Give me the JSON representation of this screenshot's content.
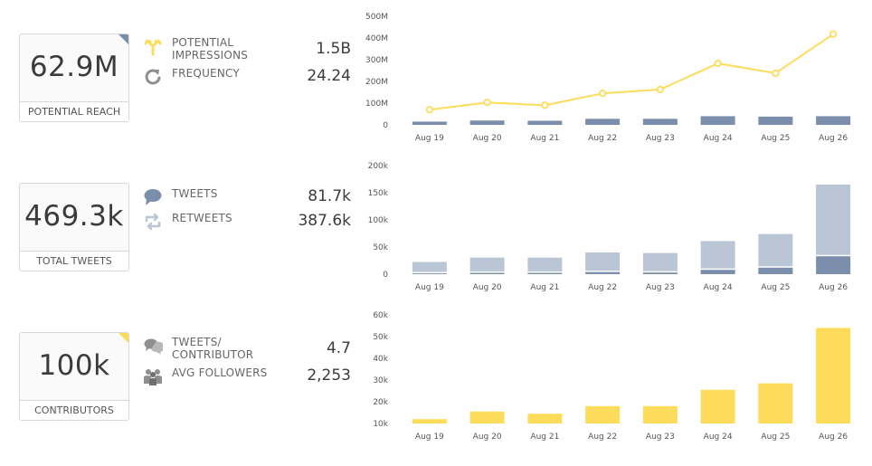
{
  "sections": [
    {
      "kpi": {
        "value": "62.9M",
        "label": "POTENTIAL REACH"
      },
      "metrics": [
        {
          "label": "POTENTIAL\nIMPRESSIONS",
          "value": "1.5B",
          "icon": "split-arrows-icon"
        },
        {
          "label": "FREQUENCY",
          "value": "24.24",
          "icon": "refresh-icon"
        }
      ]
    },
    {
      "kpi": {
        "value": "469.3k",
        "label": "TOTAL TWEETS"
      },
      "metrics": [
        {
          "label": "TWEETS",
          "value": "81.7k",
          "icon": "speech-bubble-icon"
        },
        {
          "label": "RETWEETS",
          "value": "387.6k",
          "icon": "retweet-icon"
        }
      ]
    },
    {
      "kpi": {
        "value": "100k",
        "label": "CONTRIBUTORS"
      },
      "metrics": [
        {
          "label": "TWEETS/\nCONTRIBUTOR",
          "value": "4.7",
          "icon": "speech-bubbles-icon"
        },
        {
          "label": "AVG FOLLOWERS",
          "value": "2,253",
          "icon": "people-icon"
        }
      ]
    }
  ],
  "colors": {
    "yellow": "#fddc5c",
    "dark_blue": "#7b8fad",
    "light_blue": "#bac6d6",
    "icon_gray": "#8f8f8f",
    "corner_blue": "#7b8fad",
    "corner_yellow": "#fddc5c"
  },
  "chart_data": [
    {
      "type": "bar+line",
      "categories": [
        "Aug 19",
        "Aug 20",
        "Aug 21",
        "Aug 22",
        "Aug 23",
        "Aug 24",
        "Aug 25",
        "Aug 26"
      ],
      "bar_values": [
        15,
        20,
        19,
        28,
        28,
        40,
        38,
        40
      ],
      "line_values": [
        70,
        103,
        90,
        145,
        163,
        283,
        238,
        418
      ],
      "ylim": [
        0,
        500
      ],
      "yticks": [
        "0",
        "100M",
        "200M",
        "300M",
        "400M",
        "500M"
      ]
    },
    {
      "type": "stacked-bar",
      "categories": [
        "Aug 19",
        "Aug 20",
        "Aug 21",
        "Aug 22",
        "Aug 23",
        "Aug 24",
        "Aug 25",
        "Aug 26"
      ],
      "series": [
        {
          "values": [
            1.5,
            2.5,
            2.5,
            4,
            3,
            8,
            12,
            33
          ]
        },
        {
          "values": [
            21,
            28,
            28,
            36,
            36,
            53,
            62,
            132
          ]
        }
      ],
      "ylim": [
        0,
        200
      ],
      "yticks": [
        "0",
        "50k",
        "100k",
        "150k",
        "200k"
      ]
    },
    {
      "type": "bar",
      "categories": [
        "Aug 19",
        "Aug 20",
        "Aug 21",
        "Aug 22",
        "Aug 23",
        "Aug 24",
        "Aug 25",
        "Aug 26"
      ],
      "values": [
        12,
        15.5,
        14.5,
        18,
        18,
        25.5,
        28.5,
        54
      ],
      "ylim": [
        10,
        60
      ],
      "yticks": [
        "10k",
        "20k",
        "30k",
        "40k",
        "50k",
        "60k"
      ]
    }
  ]
}
